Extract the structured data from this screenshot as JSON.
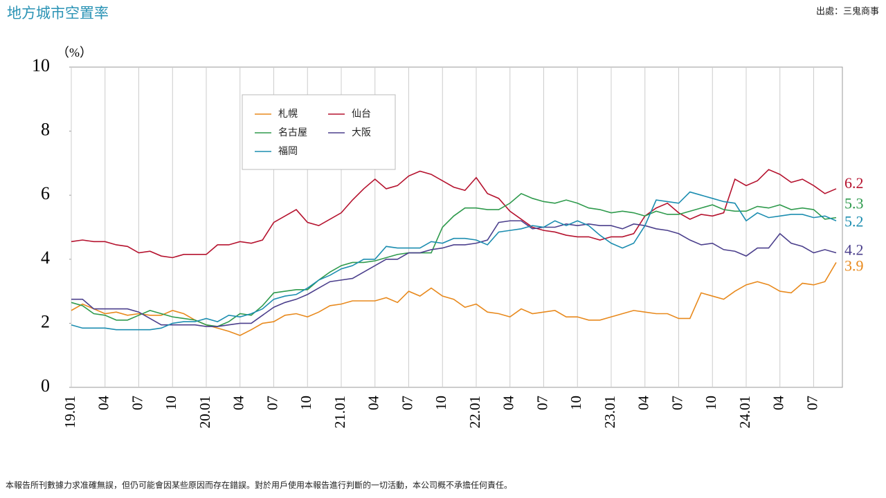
{
  "chart_data": {
    "type": "line",
    "title": "地方城市空置率",
    "y_unit": "（%）",
    "categories": [
      "19.01",
      null,
      null,
      "04",
      null,
      null,
      "07",
      null,
      null,
      "10",
      null,
      null,
      "20.01",
      null,
      null,
      "04",
      null,
      null,
      "07",
      null,
      null,
      "10",
      null,
      null,
      "21.01",
      null,
      null,
      "04",
      null,
      null,
      "07",
      null,
      null,
      "10",
      null,
      null,
      "22.01",
      null,
      null,
      "04",
      null,
      null,
      "07",
      null,
      null,
      "10",
      null,
      null,
      "23.01",
      null,
      null,
      "04",
      null,
      null,
      "07",
      null,
      null,
      "10",
      null,
      null,
      "24.01",
      null,
      null,
      "04",
      null,
      null,
      "07",
      null,
      null
    ],
    "series": [
      {
        "name": "札幌",
        "color": "#e8891c",
        "values": [
          2.4,
          2.6,
          2.45,
          2.3,
          2.35,
          2.25,
          2.3,
          2.25,
          2.25,
          2.4,
          2.3,
          2.1,
          1.95,
          1.85,
          1.75,
          1.62,
          1.8,
          2.0,
          2.05,
          2.25,
          2.3,
          2.2,
          2.35,
          2.55,
          2.6,
          2.7,
          2.7,
          2.7,
          2.8,
          2.65,
          3.0,
          2.85,
          3.1,
          2.85,
          2.75,
          2.5,
          2.6,
          2.35,
          2.3,
          2.2,
          2.45,
          2.3,
          2.35,
          2.4,
          2.2,
          2.2,
          2.1,
          2.1,
          2.2,
          2.3,
          2.4,
          2.35,
          2.3,
          2.3,
          2.15,
          2.15,
          2.95,
          2.85,
          2.75,
          3.0,
          3.2,
          3.3,
          3.2,
          3.0,
          2.95,
          3.25,
          3.2,
          3.3,
          3.9
        ]
      },
      {
        "name": "仙台",
        "color": "#b5122e",
        "values": [
          4.55,
          4.6,
          4.55,
          4.55,
          4.45,
          4.4,
          4.2,
          4.25,
          4.1,
          4.05,
          4.15,
          4.15,
          4.15,
          4.45,
          4.45,
          4.55,
          4.5,
          4.6,
          5.15,
          5.35,
          5.55,
          5.15,
          5.05,
          5.25,
          5.45,
          5.85,
          6.2,
          6.5,
          6.2,
          6.3,
          6.6,
          6.75,
          6.65,
          6.45,
          6.25,
          6.15,
          6.55,
          6.05,
          5.9,
          5.5,
          5.25,
          5.0,
          4.9,
          4.85,
          4.75,
          4.7,
          4.7,
          4.6,
          4.7,
          4.7,
          4.8,
          5.35,
          5.6,
          5.75,
          5.45,
          5.25,
          5.4,
          5.35,
          5.45,
          6.5,
          6.3,
          6.45,
          6.8,
          6.65,
          6.4,
          6.5,
          6.3,
          6.05,
          6.2
        ]
      },
      {
        "name": "名古屋",
        "color": "#2e9a4c",
        "values": [
          2.65,
          2.55,
          2.3,
          2.25,
          2.1,
          2.1,
          2.25,
          2.4,
          2.3,
          2.2,
          2.15,
          2.1,
          1.95,
          1.9,
          2.05,
          2.3,
          2.25,
          2.55,
          2.95,
          3.0,
          3.05,
          3.05,
          3.35,
          3.6,
          3.8,
          3.9,
          3.9,
          3.95,
          4.05,
          4.15,
          4.2,
          4.2,
          4.2,
          5.0,
          5.35,
          5.6,
          5.6,
          5.55,
          5.55,
          5.75,
          6.05,
          5.9,
          5.8,
          5.75,
          5.85,
          5.75,
          5.6,
          5.55,
          5.45,
          5.5,
          5.45,
          5.35,
          5.5,
          5.4,
          5.4,
          5.5,
          5.6,
          5.7,
          5.55,
          5.5,
          5.5,
          5.65,
          5.6,
          5.7,
          5.55,
          5.6,
          5.55,
          5.25,
          5.3
        ]
      },
      {
        "name": "大阪",
        "color": "#4b3f8c",
        "values": [
          2.75,
          2.75,
          2.45,
          2.45,
          2.45,
          2.45,
          2.35,
          2.15,
          1.95,
          1.95,
          1.95,
          1.95,
          1.9,
          1.9,
          1.95,
          2.0,
          2.0,
          2.25,
          2.5,
          2.65,
          2.75,
          2.9,
          3.1,
          3.3,
          3.35,
          3.4,
          3.6,
          3.8,
          4.0,
          4.0,
          4.2,
          4.2,
          4.3,
          4.35,
          4.45,
          4.45,
          4.5,
          4.6,
          5.15,
          5.2,
          5.2,
          4.95,
          5.0,
          5.0,
          5.1,
          5.05,
          5.1,
          5.05,
          5.05,
          4.95,
          5.1,
          5.05,
          4.95,
          4.9,
          4.8,
          4.6,
          4.45,
          4.5,
          4.3,
          4.25,
          4.1,
          4.35,
          4.35,
          4.8,
          4.5,
          4.4,
          4.2,
          4.3,
          4.2
        ]
      },
      {
        "name": "福岡",
        "color": "#1b8db0",
        "values": [
          1.95,
          1.85,
          1.85,
          1.85,
          1.8,
          1.8,
          1.8,
          1.8,
          1.85,
          2.0,
          2.05,
          2.05,
          2.15,
          2.05,
          2.25,
          2.2,
          2.3,
          2.45,
          2.75,
          2.85,
          2.9,
          3.1,
          3.35,
          3.5,
          3.7,
          3.8,
          4.0,
          4.0,
          4.4,
          4.35,
          4.35,
          4.35,
          4.55,
          4.5,
          4.65,
          4.65,
          4.6,
          4.45,
          4.85,
          4.9,
          4.95,
          5.05,
          5.0,
          5.2,
          5.05,
          5.2,
          5.05,
          4.75,
          4.5,
          4.35,
          4.5,
          5.05,
          5.85,
          5.8,
          5.75,
          6.1,
          6.0,
          5.9,
          5.8,
          5.75,
          5.2,
          5.45,
          5.3,
          5.35,
          5.4,
          5.4,
          5.3,
          5.35,
          5.2
        ]
      }
    ],
    "ylim": [
      0,
      10
    ],
    "yticks": [
      0,
      2,
      4,
      6,
      8,
      10
    ],
    "xgrid": true,
    "legend": "upper-left"
  },
  "source": "出處：三鬼商事",
  "disclaimer": "本報告所刊數據力求准確無誤，但仍可能會因某些原因而存在錯誤。對於用戶使用本報告進行判斷的一切活動，本公司概不承擔任何責任。"
}
